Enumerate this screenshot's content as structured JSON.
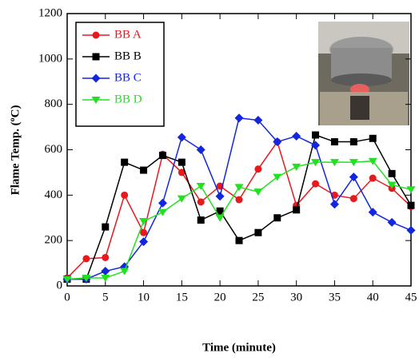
{
  "chart_data": {
    "type": "line",
    "xlabel": "Time (minute)",
    "ylabel": "Flame Temp. (ºC)",
    "x": [
      0,
      2.5,
      5,
      7.5,
      10,
      12.5,
      15,
      17.5,
      20,
      22.5,
      25,
      27.5,
      30,
      32.5,
      35,
      37.5,
      40,
      42.5,
      45
    ],
    "xlim": [
      0,
      45
    ],
    "xticks": [
      0,
      5,
      10,
      15,
      20,
      25,
      30,
      35,
      40,
      45
    ],
    "ylim": [
      0,
      1200
    ],
    "yticks": [
      0,
      200,
      400,
      600,
      800,
      1000,
      1200
    ],
    "legend": "upper left",
    "series": [
      {
        "name": "BB A",
        "color": "#e8191c",
        "marker": "circle",
        "values": [
          35,
          120,
          125,
          400,
          235,
          580,
          500,
          370,
          440,
          380,
          515,
          635,
          355,
          450,
          400,
          385,
          475,
          430,
          350
        ]
      },
      {
        "name": "BB B",
        "color": "#000000",
        "marker": "square",
        "values": [
          30,
          30,
          260,
          545,
          510,
          575,
          545,
          290,
          330,
          200,
          235,
          300,
          335,
          665,
          635,
          635,
          650,
          495,
          355
        ]
      },
      {
        "name": "BB C",
        "color": "#1226e0",
        "marker": "diamond",
        "values": [
          30,
          30,
          65,
          85,
          195,
          365,
          655,
          600,
          395,
          740,
          730,
          635,
          660,
          620,
          360,
          480,
          325,
          280,
          245
        ]
      },
      {
        "name": "BB D",
        "color": "#22e022",
        "marker": "triangle-down",
        "values": [
          30,
          35,
          35,
          65,
          285,
          325,
          385,
          440,
          300,
          435,
          415,
          480,
          525,
          545,
          545,
          545,
          550,
          445,
          425
        ]
      }
    ]
  }
}
